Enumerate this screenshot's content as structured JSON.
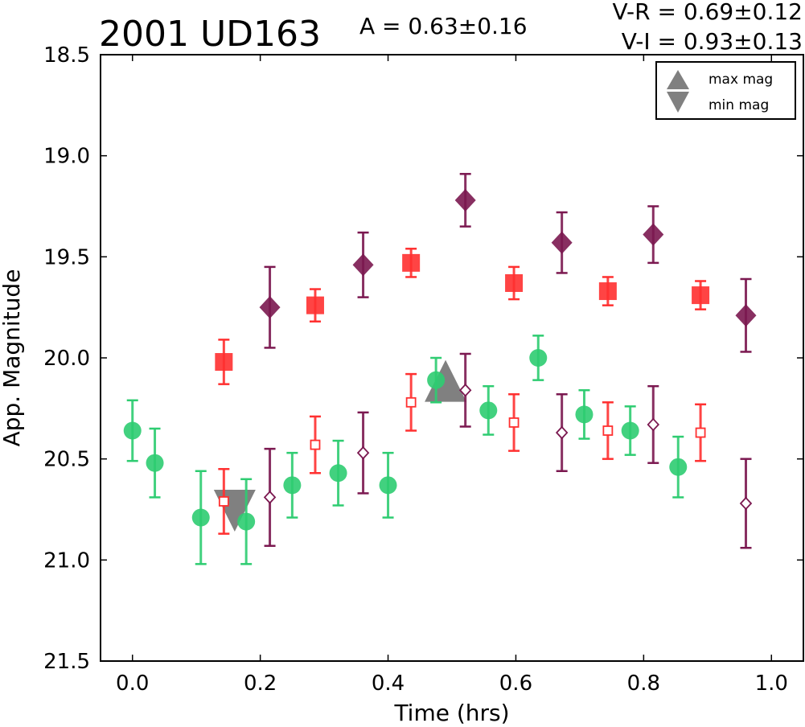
{
  "chart_data": {
    "type": "scatter",
    "title": "2001 UD163",
    "annotations": {
      "amplitude": "A  = 0.63±0.16",
      "v_minus_r": "V-R = 0.69±0.12",
      "v_minus_i": "V-I  = 0.93±0.13"
    },
    "xlabel": "Time (hrs)",
    "ylabel": "App. Magnitude",
    "xlim": [
      -0.05,
      1.05
    ],
    "ylim": [
      21.5,
      18.5
    ],
    "y_inverted": true,
    "xticks": [
      0.0,
      0.2,
      0.4,
      0.6,
      0.8,
      1.0
    ],
    "xtick_labels": [
      "0.0",
      "0.2",
      "0.4",
      "0.6",
      "0.8",
      "1.0"
    ],
    "yticks": [
      18.5,
      19.0,
      19.5,
      20.0,
      20.5,
      21.0,
      21.5
    ],
    "ytick_labels": [
      "18.5",
      "19.0",
      "19.5",
      "20.0",
      "20.5",
      "21.0",
      "21.5"
    ],
    "grid": false,
    "legend": {
      "placement": "top-right",
      "entries": [
        {
          "label": "max mag",
          "marker": "triangle-up",
          "color": "#808080"
        },
        {
          "label": "min mag",
          "marker": "triangle-down",
          "color": "#808080"
        }
      ]
    },
    "series": [
      {
        "marker": "circle",
        "filled": true,
        "color": "#2ecc71",
        "points": [
          {
            "x": 0.0,
            "y": 20.36,
            "err": 0.15
          },
          {
            "x": 0.035,
            "y": 20.52,
            "err": 0.17
          },
          {
            "x": 0.107,
            "y": 20.79,
            "err": 0.23
          },
          {
            "x": 0.178,
            "y": 20.81,
            "err": 0.21
          },
          {
            "x": 0.25,
            "y": 20.63,
            "err": 0.16
          },
          {
            "x": 0.322,
            "y": 20.57,
            "err": 0.16
          },
          {
            "x": 0.4,
            "y": 20.63,
            "err": 0.16
          },
          {
            "x": 0.475,
            "y": 20.11,
            "err": 0.11
          },
          {
            "x": 0.557,
            "y": 20.26,
            "err": 0.12
          },
          {
            "x": 0.635,
            "y": 20.0,
            "err": 0.11
          },
          {
            "x": 0.707,
            "y": 20.28,
            "err": 0.12
          },
          {
            "x": 0.779,
            "y": 20.36,
            "err": 0.12
          },
          {
            "x": 0.854,
            "y": 20.54,
            "err": 0.15
          }
        ]
      },
      {
        "marker": "square",
        "filled": true,
        "color": "#ff3030",
        "points": [
          {
            "x": 0.143,
            "y": 20.02,
            "err": 0.11
          },
          {
            "x": 0.286,
            "y": 19.74,
            "err": 0.08
          },
          {
            "x": 0.436,
            "y": 19.53,
            "err": 0.07
          },
          {
            "x": 0.597,
            "y": 19.63,
            "err": 0.08
          },
          {
            "x": 0.744,
            "y": 19.67,
            "err": 0.07
          },
          {
            "x": 0.889,
            "y": 19.69,
            "err": 0.07
          }
        ]
      },
      {
        "marker": "square",
        "filled": false,
        "color": "#ff3030",
        "points": [
          {
            "x": 0.143,
            "y": 20.71,
            "err": 0.16
          },
          {
            "x": 0.286,
            "y": 20.43,
            "err": 0.14
          },
          {
            "x": 0.436,
            "y": 20.22,
            "err": 0.14
          },
          {
            "x": 0.597,
            "y": 20.32,
            "err": 0.14
          },
          {
            "x": 0.744,
            "y": 20.36,
            "err": 0.14
          },
          {
            "x": 0.889,
            "y": 20.37,
            "err": 0.14
          }
        ]
      },
      {
        "marker": "diamond",
        "filled": true,
        "color": "#7b1850",
        "points": [
          {
            "x": 0.215,
            "y": 19.75,
            "err": 0.2
          },
          {
            "x": 0.361,
            "y": 19.54,
            "err": 0.16
          },
          {
            "x": 0.521,
            "y": 19.22,
            "err": 0.13
          },
          {
            "x": 0.672,
            "y": 19.43,
            "err": 0.15
          },
          {
            "x": 0.815,
            "y": 19.39,
            "err": 0.14
          },
          {
            "x": 0.96,
            "y": 19.79,
            "err": 0.18
          }
        ]
      },
      {
        "marker": "diamond",
        "filled": false,
        "color": "#7b1850",
        "points": [
          {
            "x": 0.215,
            "y": 20.69,
            "err": 0.24
          },
          {
            "x": 0.361,
            "y": 20.47,
            "err": 0.2
          },
          {
            "x": 0.521,
            "y": 20.16,
            "err": 0.18
          },
          {
            "x": 0.672,
            "y": 20.37,
            "err": 0.19
          },
          {
            "x": 0.815,
            "y": 20.33,
            "err": 0.19
          },
          {
            "x": 0.96,
            "y": 20.72,
            "err": 0.22
          }
        ]
      }
    ],
    "extrema": [
      {
        "kind": "max",
        "marker": "triangle-up",
        "x": 0.49,
        "y": 20.13,
        "color": "#808080"
      },
      {
        "kind": "min",
        "marker": "triangle-down",
        "x": 0.16,
        "y": 20.74,
        "color": "#808080"
      }
    ]
  }
}
